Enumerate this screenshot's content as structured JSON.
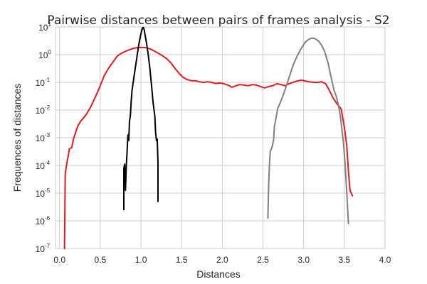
{
  "chart_data": {
    "type": "line",
    "title": "Pairwise distances between pairs of frames analysis - S2",
    "xlabel": "Distances",
    "ylabel": "Frequences of distances",
    "xlim": [
      -0.05,
      4.0
    ],
    "ylim_log10": [
      -7,
      1
    ],
    "yscale": "log",
    "grid": true,
    "legend": "none",
    "x_ticks": [
      "0.0",
      "0.5",
      "1.0",
      "1.5",
      "2.0",
      "2.5",
      "3.0",
      "3.5",
      "4.0"
    ],
    "x_tick_values": [
      0,
      0.5,
      1.0,
      1.5,
      2.0,
      2.5,
      3.0,
      3.5,
      4.0
    ],
    "y_ticks": [
      {
        "base": "10",
        "exp": "1",
        "value_log10": 1
      },
      {
        "base": "10",
        "exp": "0",
        "value_log10": 0
      },
      {
        "base": "10",
        "exp": "-1",
        "value_log10": -1
      },
      {
        "base": "10",
        "exp": "-2",
        "value_log10": -2
      },
      {
        "base": "10",
        "exp": "-3",
        "value_log10": -3
      },
      {
        "base": "10",
        "exp": "-4",
        "value_log10": -4
      },
      {
        "base": "10",
        "exp": "-5",
        "value_log10": -5
      },
      {
        "base": "10",
        "exp": "-6",
        "value_log10": -6
      },
      {
        "base": "10",
        "exp": "-7",
        "value_log10": -7
      }
    ],
    "series": [
      {
        "color": "#e41a1c",
        "points_log10": [
          [
            0.06,
            -7.0
          ],
          [
            0.07,
            -4.3
          ],
          [
            0.09,
            -3.9
          ],
          [
            0.11,
            -3.6
          ],
          [
            0.12,
            -3.4
          ],
          [
            0.15,
            -3.35
          ],
          [
            0.17,
            -3.05
          ],
          [
            0.22,
            -2.6
          ],
          [
            0.26,
            -2.4
          ],
          [
            0.29,
            -2.3
          ],
          [
            0.33,
            -2.15
          ],
          [
            0.38,
            -1.9
          ],
          [
            0.42,
            -1.65
          ],
          [
            0.46,
            -1.4
          ],
          [
            0.51,
            -1.05
          ],
          [
            0.55,
            -0.75
          ],
          [
            0.61,
            -0.45
          ],
          [
            0.66,
            -0.25
          ],
          [
            0.71,
            -0.05
          ],
          [
            0.76,
            0.05
          ],
          [
            0.81,
            0.12
          ],
          [
            0.86,
            0.18
          ],
          [
            0.91,
            0.23
          ],
          [
            0.97,
            0.26
          ],
          [
            1.02,
            0.26
          ],
          [
            1.07,
            0.25
          ],
          [
            1.12,
            0.2
          ],
          [
            1.17,
            0.12
          ],
          [
            1.22,
            0.04
          ],
          [
            1.27,
            -0.05
          ],
          [
            1.32,
            -0.15
          ],
          [
            1.37,
            -0.3
          ],
          [
            1.42,
            -0.5
          ],
          [
            1.47,
            -0.68
          ],
          [
            1.52,
            -0.82
          ],
          [
            1.57,
            -0.9
          ],
          [
            1.62,
            -0.94
          ],
          [
            1.67,
            -0.94
          ],
          [
            1.72,
            -0.98
          ],
          [
            1.77,
            -1.0
          ],
          [
            1.82,
            -0.98
          ],
          [
            1.87,
            -1.0
          ],
          [
            1.92,
            -1.04
          ],
          [
            1.97,
            -1.02
          ],
          [
            2.02,
            -1.05
          ],
          [
            2.07,
            -1.1
          ],
          [
            2.12,
            -1.18
          ],
          [
            2.17,
            -1.12
          ],
          [
            2.22,
            -1.08
          ],
          [
            2.27,
            -1.1
          ],
          [
            2.32,
            -1.12
          ],
          [
            2.37,
            -1.08
          ],
          [
            2.42,
            -1.1
          ],
          [
            2.47,
            -1.15
          ],
          [
            2.52,
            -1.2
          ],
          [
            2.57,
            -1.15
          ],
          [
            2.62,
            -1.12
          ],
          [
            2.67,
            -1.05
          ],
          [
            2.72,
            -1.08
          ],
          [
            2.77,
            -1.12
          ],
          [
            2.82,
            -1.05
          ],
          [
            2.87,
            -1.0
          ],
          [
            2.92,
            -0.95
          ],
          [
            2.97,
            -0.92
          ],
          [
            3.02,
            -0.95
          ],
          [
            3.07,
            -0.98
          ],
          [
            3.12,
            -1.0
          ],
          [
            3.17,
            -1.0
          ],
          [
            3.22,
            -0.98
          ],
          [
            3.27,
            -1.05
          ],
          [
            3.31,
            -1.25
          ],
          [
            3.36,
            -1.55
          ],
          [
            3.41,
            -1.78
          ],
          [
            3.46,
            -1.95
          ],
          [
            3.5,
            -2.6
          ],
          [
            3.53,
            -3.3
          ],
          [
            3.55,
            -4.2
          ],
          [
            3.57,
            -4.9
          ],
          [
            3.6,
            -5.1
          ]
        ]
      },
      {
        "color": "#000000",
        "points_log10": [
          [
            0.79,
            -5.6
          ],
          [
            0.79,
            -4.1
          ],
          [
            0.8,
            -3.95
          ],
          [
            0.81,
            -4.9
          ],
          [
            0.82,
            -4.0
          ],
          [
            0.83,
            -3.5
          ],
          [
            0.84,
            -2.9
          ],
          [
            0.85,
            -3.1
          ],
          [
            0.86,
            -2.4
          ],
          [
            0.87,
            -2.2
          ],
          [
            0.88,
            -1.7
          ],
          [
            0.89,
            -1.3
          ],
          [
            0.91,
            -0.9
          ],
          [
            0.93,
            -0.5
          ],
          [
            0.95,
            -0.1
          ],
          [
            0.97,
            0.3
          ],
          [
            0.99,
            0.62
          ],
          [
            1.01,
            0.88
          ],
          [
            1.02,
            0.97
          ],
          [
            1.03,
            0.98
          ],
          [
            1.04,
            0.9
          ],
          [
            1.05,
            0.72
          ],
          [
            1.07,
            0.4
          ],
          [
            1.09,
            0.0
          ],
          [
            1.11,
            -0.5
          ],
          [
            1.13,
            -1.1
          ],
          [
            1.15,
            -1.75
          ],
          [
            1.17,
            -2.2
          ],
          [
            1.18,
            -2.8
          ],
          [
            1.19,
            -3.1
          ],
          [
            1.2,
            -3.05
          ],
          [
            1.21,
            -3.9
          ],
          [
            1.21,
            -5.3
          ]
        ]
      },
      {
        "color": "#808080",
        "points_log10": [
          [
            2.56,
            -5.9
          ],
          [
            2.57,
            -4.7
          ],
          [
            2.58,
            -3.9
          ],
          [
            2.59,
            -3.5
          ],
          [
            2.61,
            -3.35
          ],
          [
            2.63,
            -3.1
          ],
          [
            2.64,
            -2.6
          ],
          [
            2.66,
            -2.3
          ],
          [
            2.68,
            -1.95
          ],
          [
            2.71,
            -1.75
          ],
          [
            2.75,
            -1.45
          ],
          [
            2.79,
            -1.1
          ],
          [
            2.83,
            -0.75
          ],
          [
            2.87,
            -0.38
          ],
          [
            2.92,
            -0.05
          ],
          [
            2.97,
            0.22
          ],
          [
            3.02,
            0.45
          ],
          [
            3.06,
            0.55
          ],
          [
            3.1,
            0.6
          ],
          [
            3.14,
            0.58
          ],
          [
            3.18,
            0.5
          ],
          [
            3.22,
            0.35
          ],
          [
            3.26,
            0.1
          ],
          [
            3.3,
            -0.3
          ],
          [
            3.34,
            -0.85
          ],
          [
            3.37,
            -1.25
          ],
          [
            3.4,
            -1.5
          ],
          [
            3.43,
            -1.85
          ],
          [
            3.45,
            -2.2
          ],
          [
            3.47,
            -2.7
          ],
          [
            3.49,
            -3.2
          ],
          [
            3.51,
            -4.0
          ],
          [
            3.53,
            -5.0
          ],
          [
            3.55,
            -6.1
          ]
        ]
      }
    ]
  }
}
